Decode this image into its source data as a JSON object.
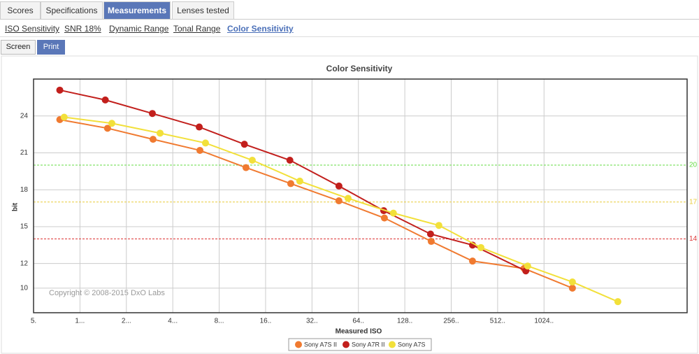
{
  "tabs": [
    "Scores",
    "Specifications",
    "Measurements",
    "Lenses tested"
  ],
  "active_tab": 2,
  "subtabs": [
    "ISO Sensitivity",
    "SNR 18%",
    "Dynamic Range",
    "Tonal Range",
    "Color Sensitivity"
  ],
  "active_subtab": 4,
  "buttons": [
    "Screen",
    "Print"
  ],
  "active_button": 1,
  "chart_data": {
    "type": "line",
    "title": "Color Sensitivity",
    "x_label": "Measured ISO",
    "y_label": "bit",
    "annotation": "Copyright © 2008-2015 DxO Labs",
    "log_x": true,
    "grid": true,
    "xlim": [
      50,
      868000
    ],
    "ylim": [
      8,
      27
    ],
    "xticks": [
      {
        "value": 50,
        "label": "5."
      },
      {
        "value": 100,
        "label": "1..."
      },
      {
        "value": 200,
        "label": "2..."
      },
      {
        "value": 400,
        "label": "4..."
      },
      {
        "value": 800,
        "label": "8..."
      },
      {
        "value": 1600,
        "label": "16.."
      },
      {
        "value": 3200,
        "label": "32.."
      },
      {
        "value": 6400,
        "label": "64.."
      },
      {
        "value": 12800,
        "label": "128.."
      },
      {
        "value": 25600,
        "label": "256.."
      },
      {
        "value": 51200,
        "label": "512.."
      },
      {
        "value": 102400,
        "label": "1024.."
      }
    ],
    "yticks": [
      10,
      12,
      15,
      18,
      21,
      24
    ],
    "reference_lines": [
      {
        "value": 20,
        "color": "#66dd44"
      },
      {
        "value": 17,
        "color": "#e8cc3a"
      },
      {
        "value": 14,
        "color": "#dd3333"
      }
    ],
    "series": [
      {
        "name": "Sony A7S II",
        "color": "#f07a30",
        "x": [
          74,
          151,
          298,
          600,
          1194,
          2330,
          4786,
          9440,
          19000,
          35200,
          76000,
          156500
        ],
        "values": [
          23.7,
          23.0,
          22.1,
          21.2,
          19.8,
          18.5,
          17.1,
          15.7,
          13.8,
          12.2,
          11.6,
          10.0
        ]
      },
      {
        "name": "Sony A7R II",
        "color": "#c21f1c",
        "x": [
          74,
          146,
          295,
          594,
          1166,
          2300,
          4786,
          9340,
          18800,
          35200,
          78000
        ],
        "values": [
          26.1,
          25.3,
          24.2,
          23.1,
          21.7,
          20.4,
          18.3,
          16.3,
          14.4,
          13.5,
          11.4
        ]
      },
      {
        "name": "Sony A7S",
        "color": "#f2e03a",
        "x": [
          79,
          161,
          331,
          652,
          1312,
          2668,
          5485,
          10800,
          21300,
          39900,
          80200,
          156500,
          308500
        ],
        "values": [
          23.9,
          23.4,
          22.6,
          21.8,
          20.4,
          18.7,
          17.3,
          16.1,
          15.1,
          13.3,
          11.8,
          10.5,
          8.9
        ]
      }
    ]
  }
}
